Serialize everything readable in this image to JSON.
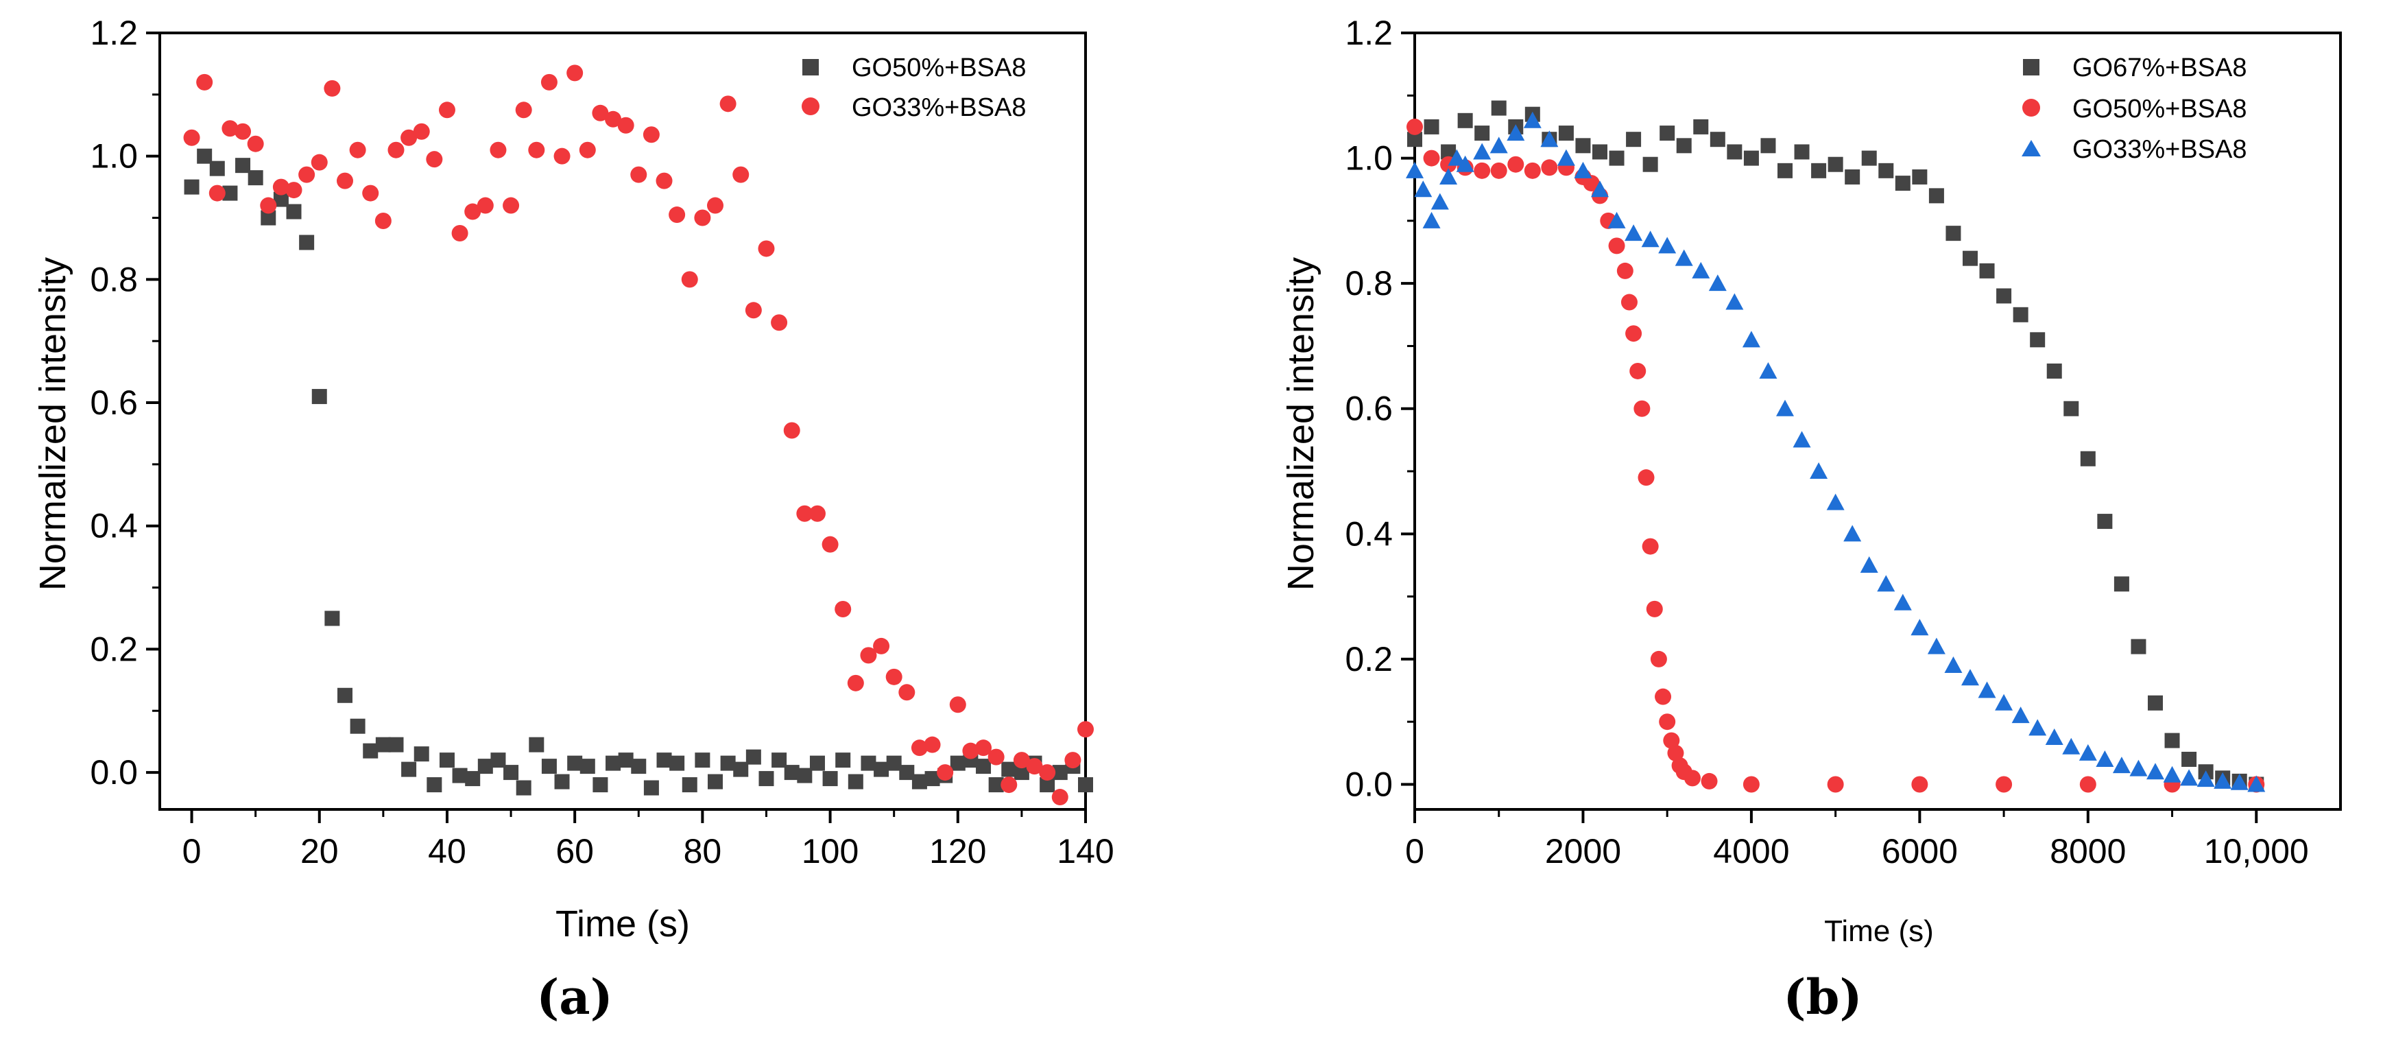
{
  "chart_data": [
    {
      "type": "scatter",
      "title": "",
      "xlabel": "Time (s)",
      "ylabel": "Normalized intensity",
      "xlim": [
        -5,
        140
      ],
      "ylim": [
        -0.06,
        1.2
      ],
      "xticks": [
        0,
        20,
        40,
        60,
        80,
        100,
        120,
        140
      ],
      "xtick_labels": [
        "0",
        "20",
        "40",
        "60",
        "80",
        "100",
        "120",
        "140"
      ],
      "yticks": [
        0.0,
        0.2,
        0.4,
        0.6,
        0.8,
        1.0,
        1.2
      ],
      "ytick_labels": [
        "0.0",
        "0.2",
        "0.4",
        "0.6",
        "0.8",
        "1.0",
        "1.2"
      ],
      "grid": false,
      "legend_position": "top-right",
      "panel_label": "(a)",
      "series": [
        {
          "name": "GO50%+BSA8",
          "color": "#444444",
          "marker": "square",
          "x": [
            0,
            2,
            4,
            6,
            8,
            10,
            12,
            14,
            16,
            18,
            20,
            22,
            24,
            26,
            28,
            30,
            32,
            34,
            36,
            38,
            40,
            42,
            44,
            46,
            48,
            50,
            52,
            54,
            56,
            58,
            60,
            62,
            64,
            66,
            68,
            70,
            72,
            74,
            76,
            78,
            80,
            82,
            84,
            86,
            88,
            90,
            92,
            94,
            96,
            98,
            100,
            102,
            104,
            106,
            108,
            110,
            112,
            114,
            116,
            118,
            120,
            122,
            124,
            126,
            128,
            130,
            132,
            134,
            136,
            138,
            140
          ],
          "y": [
            0.95,
            1.0,
            0.98,
            0.94,
            0.985,
            0.965,
            0.9,
            0.93,
            0.91,
            0.86,
            0.61,
            0.25,
            0.125,
            0.075,
            0.035,
            0.045,
            0.045,
            0.005,
            0.03,
            -0.02,
            0.02,
            -0.005,
            -0.01,
            0.01,
            0.02,
            0.0,
            -0.025,
            0.045,
            0.01,
            -0.015,
            0.015,
            0.01,
            -0.02,
            0.015,
            0.02,
            0.01,
            -0.025,
            0.02,
            0.015,
            -0.02,
            0.02,
            -0.015,
            0.015,
            0.005,
            0.025,
            -0.01,
            0.02,
            0.0,
            -0.005,
            0.015,
            -0.01,
            0.02,
            -0.015,
            0.015,
            0.005,
            0.015,
            0.0,
            -0.015,
            -0.01,
            -0.005,
            0.015,
            0.02,
            0.01,
            -0.02,
            0.005,
            0.0,
            0.015,
            -0.02,
            0.0,
            0.01,
            -0.02
          ]
        },
        {
          "name": "GO33%+BSA8",
          "color": "#f0383c",
          "marker": "circle",
          "x": [
            0,
            2,
            4,
            6,
            8,
            10,
            12,
            14,
            16,
            18,
            20,
            22,
            24,
            26,
            28,
            30,
            32,
            34,
            36,
            38,
            40,
            42,
            44,
            46,
            48,
            50,
            52,
            54,
            56,
            58,
            60,
            62,
            64,
            66,
            68,
            70,
            72,
            74,
            76,
            78,
            80,
            82,
            84,
            86,
            88,
            90,
            92,
            94,
            96,
            98,
            100,
            102,
            104,
            106,
            108,
            110,
            112,
            114,
            116,
            118,
            120,
            122,
            124,
            126,
            128,
            130,
            132,
            134,
            136,
            138,
            140
          ],
          "y": [
            1.03,
            1.12,
            0.94,
            1.045,
            1.04,
            1.02,
            0.92,
            0.95,
            0.945,
            0.97,
            0.99,
            1.11,
            0.96,
            1.01,
            0.94,
            0.895,
            1.01,
            1.03,
            1.04,
            0.995,
            1.075,
            0.875,
            0.91,
            0.92,
            1.01,
            0.92,
            1.075,
            1.01,
            1.12,
            1.0,
            1.135,
            1.01,
            1.07,
            1.06,
            1.05,
            0.97,
            1.035,
            0.96,
            0.905,
            0.8,
            0.9,
            0.92,
            1.085,
            0.97,
            0.75,
            0.85,
            0.73,
            0.555,
            0.42,
            0.42,
            0.37,
            0.265,
            0.145,
            0.19,
            0.205,
            0.155,
            0.13,
            0.04,
            0.045,
            0.0,
            0.11,
            0.035,
            0.04,
            0.025,
            -0.02,
            0.02,
            0.01,
            0.0,
            -0.04,
            0.02,
            0.07
          ]
        }
      ]
    },
    {
      "type": "scatter",
      "title": "",
      "xlabel": "Time (s)",
      "ylabel": "Normalized intensity",
      "xlim": [
        0,
        11000
      ],
      "ylim": [
        -0.04,
        1.2
      ],
      "xticks": [
        0,
        2000,
        4000,
        6000,
        8000,
        10000
      ],
      "xtick_labels": [
        "0",
        "2000",
        "4000",
        "6000",
        "8000",
        "10,000"
      ],
      "yticks": [
        0.0,
        0.2,
        0.4,
        0.6,
        0.8,
        1.0,
        1.2
      ],
      "ytick_labels": [
        "0.0",
        "0.2",
        "0.4",
        "0.6",
        "0.8",
        "1.0",
        "1.2"
      ],
      "grid": false,
      "legend_position": "top-right",
      "panel_label": "(b)",
      "series": [
        {
          "name": "GO67%+BSA8",
          "color": "#444444",
          "marker": "square",
          "x": [
            0,
            200,
            400,
            600,
            800,
            1000,
            1200,
            1400,
            1600,
            1800,
            2000,
            2200,
            2400,
            2600,
            2800,
            3000,
            3200,
            3400,
            3600,
            3800,
            4000,
            4200,
            4400,
            4600,
            4800,
            5000,
            5200,
            5400,
            5600,
            5800,
            6000,
            6200,
            6400,
            6600,
            6800,
            7000,
            7200,
            7400,
            7600,
            7800,
            8000,
            8200,
            8400,
            8600,
            8800,
            9000,
            9200,
            9400,
            9600,
            9800,
            10000
          ],
          "y": [
            1.03,
            1.05,
            1.01,
            1.06,
            1.04,
            1.08,
            1.05,
            1.07,
            1.03,
            1.04,
            1.02,
            1.01,
            1.0,
            1.03,
            0.99,
            1.04,
            1.02,
            1.05,
            1.03,
            1.01,
            1.0,
            1.02,
            0.98,
            1.01,
            0.98,
            0.99,
            0.97,
            1.0,
            0.98,
            0.96,
            0.97,
            0.94,
            0.88,
            0.84,
            0.82,
            0.78,
            0.75,
            0.71,
            0.66,
            0.6,
            0.52,
            0.42,
            0.32,
            0.22,
            0.13,
            0.07,
            0.04,
            0.02,
            0.01,
            0.005,
            0.0
          ]
        },
        {
          "name": "GO50%+BSA8",
          "color": "#f0383c",
          "marker": "circle",
          "x": [
            0,
            200,
            400,
            600,
            800,
            1000,
            1200,
            1400,
            1600,
            1800,
            2000,
            2100,
            2200,
            2300,
            2400,
            2500,
            2550,
            2600,
            2650,
            2700,
            2750,
            2800,
            2850,
            2900,
            2950,
            3000,
            3050,
            3100,
            3150,
            3200,
            3300,
            3500,
            4000,
            5000,
            6000,
            7000,
            8000,
            9000,
            10000
          ],
          "y": [
            1.05,
            1.0,
            0.99,
            0.985,
            0.98,
            0.98,
            0.99,
            0.98,
            0.985,
            0.985,
            0.97,
            0.96,
            0.94,
            0.9,
            0.86,
            0.82,
            0.77,
            0.72,
            0.66,
            0.6,
            0.49,
            0.38,
            0.28,
            0.2,
            0.14,
            0.1,
            0.07,
            0.05,
            0.03,
            0.02,
            0.01,
            0.005,
            0.0,
            0.0,
            0.0,
            0.0,
            0.0,
            0.0,
            0.0
          ]
        },
        {
          "name": "GO33%+BSA8",
          "color": "#1f6fd6",
          "marker": "triangle",
          "x": [
            0,
            100,
            200,
            300,
            400,
            500,
            600,
            800,
            1000,
            1200,
            1400,
            1600,
            1800,
            2000,
            2200,
            2400,
            2600,
            2800,
            3000,
            3200,
            3400,
            3600,
            3800,
            4000,
            4200,
            4400,
            4600,
            4800,
            5000,
            5200,
            5400,
            5600,
            5800,
            6000,
            6200,
            6400,
            6600,
            6800,
            7000,
            7200,
            7400,
            7600,
            7800,
            8000,
            8200,
            8400,
            8600,
            8800,
            9000,
            9200,
            9400,
            9600,
            9800,
            10000
          ],
          "y": [
            0.98,
            0.95,
            0.9,
            0.93,
            0.97,
            1.0,
            0.99,
            1.01,
            1.02,
            1.04,
            1.06,
            1.03,
            1.0,
            0.98,
            0.95,
            0.9,
            0.88,
            0.87,
            0.86,
            0.84,
            0.82,
            0.8,
            0.77,
            0.71,
            0.66,
            0.6,
            0.55,
            0.5,
            0.45,
            0.4,
            0.35,
            0.32,
            0.29,
            0.25,
            0.22,
            0.19,
            0.17,
            0.15,
            0.13,
            0.11,
            0.09,
            0.075,
            0.06,
            0.05,
            0.04,
            0.03,
            0.025,
            0.02,
            0.015,
            0.01,
            0.008,
            0.005,
            0.003,
            0.0
          ]
        }
      ]
    }
  ]
}
